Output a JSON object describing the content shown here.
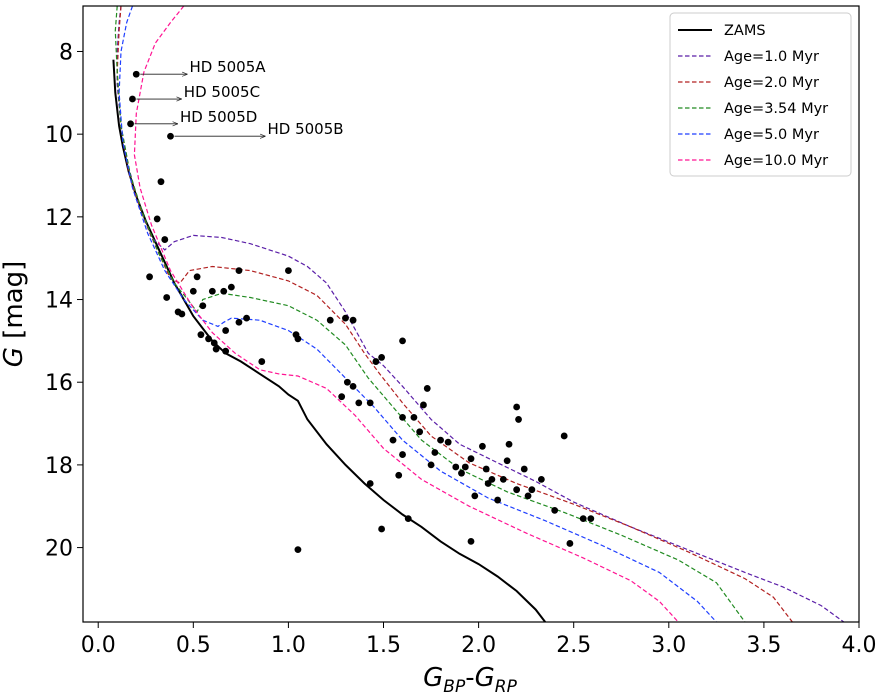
{
  "chart_data": {
    "type": "scatter",
    "xlabel": "G_BP-G_RP",
    "ylabel": "G [mag]",
    "xlim": [
      -0.08,
      4.0
    ],
    "ylim": [
      21.8,
      6.9
    ],
    "y_inverted": true,
    "x_ticks": [
      "0.0",
      "0.5",
      "1.0",
      "1.5",
      "2.0",
      "2.5",
      "3.0",
      "3.5",
      "4.0"
    ],
    "y_ticks": [
      "8",
      "10",
      "12",
      "14",
      "16",
      "18",
      "20"
    ],
    "legend_position": "top-right",
    "series": [
      {
        "name": "ZAMS",
        "color": "#000000",
        "style": "solid",
        "points": [
          [
            0.08,
            8.2
          ],
          [
            0.09,
            9.0
          ],
          [
            0.11,
            9.8
          ],
          [
            0.13,
            10.3
          ],
          [
            0.16,
            10.9
          ],
          [
            0.2,
            11.5
          ],
          [
            0.25,
            12.1
          ],
          [
            0.3,
            12.6
          ],
          [
            0.35,
            13.1
          ],
          [
            0.4,
            13.6
          ],
          [
            0.45,
            14.0
          ],
          [
            0.5,
            14.4
          ],
          [
            0.55,
            14.7
          ],
          [
            0.6,
            15.0
          ],
          [
            0.67,
            15.3
          ],
          [
            0.75,
            15.5
          ],
          [
            0.85,
            15.8
          ],
          [
            0.95,
            16.1
          ],
          [
            1.0,
            16.3
          ],
          [
            1.05,
            16.45
          ],
          [
            1.1,
            16.9
          ],
          [
            1.2,
            17.5
          ],
          [
            1.3,
            18.0
          ],
          [
            1.4,
            18.45
          ],
          [
            1.5,
            18.85
          ],
          [
            1.6,
            19.2
          ],
          [
            1.7,
            19.5
          ],
          [
            1.8,
            19.85
          ],
          [
            1.9,
            20.15
          ],
          [
            2.0,
            20.4
          ],
          [
            2.1,
            20.7
          ],
          [
            2.2,
            21.05
          ],
          [
            2.3,
            21.5
          ],
          [
            2.35,
            21.8
          ]
        ]
      },
      {
        "name": "Age=1.0 Myr",
        "color": "#5b1fa8",
        "style": "dashed",
        "points": [
          [
            0.12,
            6.9
          ],
          [
            0.11,
            7.3
          ],
          [
            0.1,
            8.0
          ],
          [
            0.1,
            8.8
          ],
          [
            0.12,
            9.8
          ],
          [
            0.16,
            10.8
          ],
          [
            0.22,
            11.8
          ],
          [
            0.28,
            12.5
          ],
          [
            0.35,
            12.8
          ],
          [
            0.4,
            12.6
          ],
          [
            0.5,
            12.45
          ],
          [
            0.65,
            12.5
          ],
          [
            0.8,
            12.65
          ],
          [
            1.0,
            12.95
          ],
          [
            1.1,
            13.2
          ],
          [
            1.2,
            13.6
          ],
          [
            1.3,
            14.3
          ],
          [
            1.36,
            14.8
          ],
          [
            1.42,
            15.3
          ],
          [
            1.5,
            15.6
          ],
          [
            1.6,
            16.1
          ],
          [
            1.75,
            16.9
          ],
          [
            1.9,
            17.5
          ],
          [
            2.1,
            17.95
          ],
          [
            2.3,
            18.4
          ],
          [
            2.5,
            18.9
          ],
          [
            2.8,
            19.5
          ],
          [
            3.1,
            20.05
          ],
          [
            3.4,
            20.6
          ],
          [
            3.6,
            20.95
          ],
          [
            3.8,
            21.4
          ],
          [
            3.92,
            21.8
          ]
        ]
      },
      {
        "name": "Age=2.0 Myr",
        "color": "#b22222",
        "style": "dashed",
        "points": [
          [
            0.12,
            6.9
          ],
          [
            0.11,
            7.5
          ],
          [
            0.1,
            8.5
          ],
          [
            0.12,
            9.8
          ],
          [
            0.16,
            10.9
          ],
          [
            0.22,
            11.8
          ],
          [
            0.3,
            12.7
          ],
          [
            0.38,
            13.5
          ],
          [
            0.43,
            13.6
          ],
          [
            0.48,
            13.3
          ],
          [
            0.6,
            13.2
          ],
          [
            0.8,
            13.3
          ],
          [
            1.0,
            13.55
          ],
          [
            1.15,
            13.9
          ],
          [
            1.3,
            14.6
          ],
          [
            1.4,
            15.3
          ],
          [
            1.48,
            15.8
          ],
          [
            1.6,
            16.5
          ],
          [
            1.75,
            17.3
          ],
          [
            1.95,
            17.95
          ],
          [
            2.2,
            18.45
          ],
          [
            2.5,
            18.95
          ],
          [
            2.8,
            19.5
          ],
          [
            3.1,
            20.1
          ],
          [
            3.4,
            20.75
          ],
          [
            3.55,
            21.2
          ],
          [
            3.65,
            21.8
          ]
        ]
      },
      {
        "name": "Age=3.54 Myr",
        "color": "#228b22",
        "style": "dashed",
        "points": [
          [
            0.1,
            6.9
          ],
          [
            0.09,
            7.5
          ],
          [
            0.1,
            8.5
          ],
          [
            0.12,
            9.8
          ],
          [
            0.17,
            11.0
          ],
          [
            0.24,
            12.0
          ],
          [
            0.32,
            12.9
          ],
          [
            0.4,
            13.6
          ],
          [
            0.47,
            14.0
          ],
          [
            0.52,
            14.3
          ],
          [
            0.55,
            14.0
          ],
          [
            0.65,
            13.85
          ],
          [
            0.8,
            13.95
          ],
          [
            1.0,
            14.15
          ],
          [
            1.15,
            14.5
          ],
          [
            1.3,
            15.1
          ],
          [
            1.42,
            15.9
          ],
          [
            1.55,
            16.6
          ],
          [
            1.7,
            17.4
          ],
          [
            1.9,
            18.1
          ],
          [
            2.15,
            18.65
          ],
          [
            2.45,
            19.15
          ],
          [
            2.75,
            19.7
          ],
          [
            3.05,
            20.3
          ],
          [
            3.25,
            20.85
          ],
          [
            3.4,
            21.8
          ]
        ]
      },
      {
        "name": "Age=5.0 Myr",
        "color": "#1f3fff",
        "style": "dashed",
        "points": [
          [
            0.18,
            6.9
          ],
          [
            0.15,
            7.3
          ],
          [
            0.12,
            8.0
          ],
          [
            0.11,
            9.0
          ],
          [
            0.13,
            10.2
          ],
          [
            0.18,
            11.3
          ],
          [
            0.26,
            12.4
          ],
          [
            0.35,
            13.3
          ],
          [
            0.45,
            14.0
          ],
          [
            0.55,
            14.5
          ],
          [
            0.63,
            14.65
          ],
          [
            0.66,
            14.55
          ],
          [
            0.7,
            14.45
          ],
          [
            0.85,
            14.5
          ],
          [
            1.0,
            14.75
          ],
          [
            1.15,
            15.2
          ],
          [
            1.3,
            15.9
          ],
          [
            1.45,
            16.6
          ],
          [
            1.6,
            17.4
          ],
          [
            1.8,
            18.15
          ],
          [
            2.05,
            18.8
          ],
          [
            2.35,
            19.35
          ],
          [
            2.65,
            19.95
          ],
          [
            2.95,
            20.6
          ],
          [
            3.15,
            21.3
          ],
          [
            3.25,
            21.8
          ]
        ]
      },
      {
        "name": "Age=10.0 Myr",
        "color": "#ff1493",
        "style": "dashed",
        "points": [
          [
            0.45,
            6.9
          ],
          [
            0.38,
            7.3
          ],
          [
            0.3,
            7.8
          ],
          [
            0.24,
            8.5
          ],
          [
            0.2,
            9.5
          ],
          [
            0.19,
            10.5
          ],
          [
            0.22,
            11.3
          ],
          [
            0.28,
            12.2
          ],
          [
            0.38,
            13.3
          ],
          [
            0.5,
            14.2
          ],
          [
            0.6,
            14.8
          ],
          [
            0.72,
            15.3
          ],
          [
            0.85,
            15.7
          ],
          [
            0.95,
            15.8
          ],
          [
            1.05,
            15.85
          ],
          [
            1.2,
            16.15
          ],
          [
            1.35,
            16.8
          ],
          [
            1.5,
            17.6
          ],
          [
            1.7,
            18.35
          ],
          [
            1.95,
            19.0
          ],
          [
            2.25,
            19.65
          ],
          [
            2.55,
            20.25
          ],
          [
            2.8,
            20.8
          ],
          [
            2.95,
            21.3
          ],
          [
            3.05,
            21.8
          ]
        ]
      },
      {
        "name": "",
        "color": "#000000",
        "style": "markers",
        "points": [
          [
            0.2,
            8.55
          ],
          [
            0.18,
            9.15
          ],
          [
            0.17,
            9.75
          ],
          [
            0.38,
            10.05
          ],
          [
            0.33,
            11.15
          ],
          [
            0.31,
            12.05
          ],
          [
            0.35,
            12.55
          ],
          [
            0.27,
            13.45
          ],
          [
            0.36,
            13.95
          ],
          [
            0.42,
            14.3
          ],
          [
            0.44,
            14.35
          ],
          [
            0.5,
            13.8
          ],
          [
            0.52,
            13.45
          ],
          [
            0.55,
            14.15
          ],
          [
            0.6,
            13.8
          ],
          [
            0.66,
            13.8
          ],
          [
            0.7,
            13.7
          ],
          [
            0.74,
            13.3
          ],
          [
            0.78,
            14.45
          ],
          [
            0.74,
            14.55
          ],
          [
            0.67,
            14.75
          ],
          [
            0.54,
            14.85
          ],
          [
            0.58,
            14.95
          ],
          [
            0.61,
            15.05
          ],
          [
            0.62,
            15.2
          ],
          [
            0.67,
            15.25
          ],
          [
            0.86,
            15.5
          ],
          [
            1.0,
            13.3
          ],
          [
            1.04,
            14.85
          ],
          [
            1.05,
            14.95
          ],
          [
            1.22,
            14.5
          ],
          [
            1.3,
            14.45
          ],
          [
            1.34,
            14.5
          ],
          [
            1.28,
            16.35
          ],
          [
            1.31,
            16.0
          ],
          [
            1.34,
            16.1
          ],
          [
            1.37,
            16.5
          ],
          [
            1.46,
            15.5
          ],
          [
            1.49,
            15.4
          ],
          [
            1.43,
            16.5
          ],
          [
            1.55,
            17.4
          ],
          [
            1.58,
            18.25
          ],
          [
            1.6,
            17.75
          ],
          [
            1.6,
            16.85
          ],
          [
            1.6,
            15.0
          ],
          [
            1.66,
            16.85
          ],
          [
            1.69,
            17.2
          ],
          [
            1.71,
            16.55
          ],
          [
            1.73,
            16.15
          ],
          [
            1.75,
            18.0
          ],
          [
            1.77,
            17.7
          ],
          [
            1.8,
            17.4
          ],
          [
            1.84,
            17.45
          ],
          [
            1.88,
            18.05
          ],
          [
            1.91,
            18.2
          ],
          [
            1.93,
            18.05
          ],
          [
            1.96,
            17.85
          ],
          [
            1.98,
            18.75
          ],
          [
            2.02,
            17.55
          ],
          [
            2.04,
            18.1
          ],
          [
            2.05,
            18.45
          ],
          [
            2.07,
            18.35
          ],
          [
            2.1,
            18.85
          ],
          [
            2.13,
            18.35
          ],
          [
            2.15,
            17.9
          ],
          [
            2.16,
            17.5
          ],
          [
            2.2,
            16.6
          ],
          [
            2.21,
            16.9
          ],
          [
            2.2,
            18.6
          ],
          [
            2.24,
            18.1
          ],
          [
            2.26,
            18.75
          ],
          [
            2.28,
            18.6
          ],
          [
            2.33,
            18.35
          ],
          [
            2.4,
            19.1
          ],
          [
            2.45,
            17.3
          ],
          [
            2.48,
            19.9
          ],
          [
            2.59,
            19.3
          ],
          [
            2.55,
            19.3
          ],
          [
            1.43,
            18.45
          ],
          [
            1.49,
            19.55
          ],
          [
            1.63,
            19.3
          ],
          [
            1.96,
            19.85
          ],
          [
            1.05,
            20.05
          ]
        ]
      }
    ],
    "annotations": [
      {
        "text": "HD 5005A",
        "x": 0.2,
        "y": 8.55,
        "text_x": 0.48
      },
      {
        "text": "HD 5005C",
        "x": 0.18,
        "y": 9.15,
        "text_x": 0.45
      },
      {
        "text": "HD 5005D",
        "x": 0.17,
        "y": 9.75,
        "text_x": 0.43
      },
      {
        "text": "HD 5005B",
        "x": 0.38,
        "y": 10.05,
        "text_x": 0.89
      }
    ]
  }
}
